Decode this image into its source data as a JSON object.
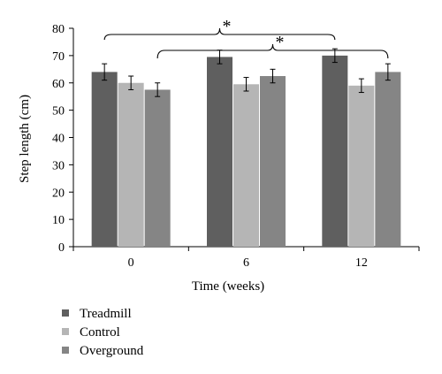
{
  "chart_data": {
    "type": "bar",
    "categories": [
      "0",
      "6",
      "12"
    ],
    "series": [
      {
        "name": "Treadmill",
        "values": [
          64,
          69.5,
          70
        ],
        "errors": [
          3,
          2.5,
          2.5
        ],
        "color": "#5f5f5f"
      },
      {
        "name": "Control",
        "values": [
          60,
          59.5,
          59
        ],
        "errors": [
          2.5,
          2.5,
          2.5
        ],
        "color": "#b5b5b5"
      },
      {
        "name": "Overground",
        "values": [
          57.5,
          62.5,
          64
        ],
        "errors": [
          2.5,
          2.5,
          3
        ],
        "color": "#858585"
      }
    ],
    "xlabel": "Time (weeks)",
    "ylabel": "Step length (cm)",
    "ylim": [
      0,
      80
    ],
    "yticks": [
      0,
      10,
      20,
      30,
      40,
      50,
      60,
      70,
      80
    ],
    "grid": false,
    "legend_position": "bottom-left",
    "annotations": [
      {
        "text": "*",
        "from_category": "0",
        "to_category": "12",
        "series": "Treadmill"
      },
      {
        "text": "*",
        "from_category": "0",
        "to_category": "12",
        "series": "Overground"
      }
    ]
  }
}
